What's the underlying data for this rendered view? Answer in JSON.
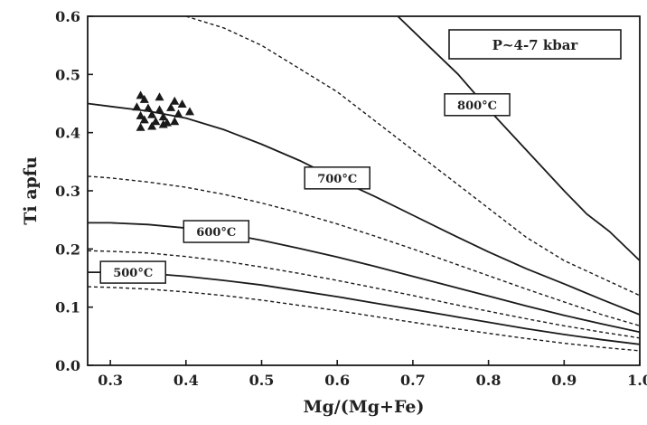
{
  "chart_data": {
    "type": "line",
    "title": "",
    "xlabel": "Mg/(Mg+Fe)",
    "ylabel": "Ti apfu",
    "xlim": [
      0.27,
      1.0
    ],
    "ylim": [
      0.0,
      0.6
    ],
    "xticks": [
      "0.3",
      "0.4",
      "0.5",
      "0.6",
      "0.7",
      "0.8",
      "0.9",
      "1.0"
    ],
    "yticks": [
      "0.0",
      "0.1",
      "0.2",
      "0.3",
      "0.4",
      "0.5",
      "0.6"
    ],
    "grid": false,
    "legend_box": "P~4-7 kbar",
    "series": [
      {
        "name": "800°C",
        "style": "solid",
        "x": [
          0.68,
          0.72,
          0.76,
          0.8,
          0.85,
          0.9,
          0.93,
          0.96,
          1.0
        ],
        "y": [
          0.6,
          0.55,
          0.5,
          0.44,
          0.37,
          0.3,
          0.26,
          0.23,
          0.18
        ]
      },
      {
        "name": "",
        "style": "dashed",
        "x": [
          0.4,
          0.45,
          0.5,
          0.55,
          0.6,
          0.65,
          0.7,
          0.75,
          0.8,
          0.85,
          0.9,
          0.95,
          1.0
        ],
        "y": [
          0.6,
          0.58,
          0.55,
          0.51,
          0.47,
          0.42,
          0.37,
          0.32,
          0.27,
          0.22,
          0.18,
          0.15,
          0.12
        ]
      },
      {
        "name": "700°C",
        "style": "solid",
        "x": [
          0.27,
          0.3,
          0.35,
          0.4,
          0.45,
          0.5,
          0.55,
          0.6,
          0.65,
          0.7,
          0.75,
          0.8,
          0.85,
          0.9,
          0.95,
          1.0
        ],
        "y": [
          0.45,
          0.445,
          0.437,
          0.425,
          0.405,
          0.38,
          0.352,
          0.32,
          0.29,
          0.258,
          0.226,
          0.195,
          0.166,
          0.14,
          0.113,
          0.087
        ]
      },
      {
        "name": "",
        "style": "dashed",
        "x": [
          0.27,
          0.3,
          0.35,
          0.4,
          0.45,
          0.5,
          0.55,
          0.6,
          0.65,
          0.7,
          0.75,
          0.8,
          0.85,
          0.9,
          0.95,
          1.0
        ],
        "y": [
          0.325,
          0.322,
          0.315,
          0.306,
          0.294,
          0.279,
          0.262,
          0.243,
          0.222,
          0.2,
          0.177,
          0.154,
          0.131,
          0.109,
          0.087,
          0.068
        ]
      },
      {
        "name": "600°C",
        "style": "solid",
        "x": [
          0.27,
          0.3,
          0.35,
          0.4,
          0.45,
          0.5,
          0.55,
          0.6,
          0.65,
          0.7,
          0.75,
          0.8,
          0.85,
          0.9,
          0.95,
          1.0
        ],
        "y": [
          0.245,
          0.245,
          0.242,
          0.236,
          0.227,
          0.215,
          0.201,
          0.186,
          0.17,
          0.153,
          0.136,
          0.119,
          0.102,
          0.086,
          0.071,
          0.057
        ]
      },
      {
        "name": "",
        "style": "dashed",
        "x": [
          0.27,
          0.3,
          0.35,
          0.4,
          0.45,
          0.5,
          0.55,
          0.6,
          0.65,
          0.7,
          0.75,
          0.8,
          0.85,
          0.9,
          0.95,
          1.0
        ],
        "y": [
          0.197,
          0.196,
          0.193,
          0.187,
          0.179,
          0.169,
          0.158,
          0.146,
          0.133,
          0.12,
          0.106,
          0.093,
          0.08,
          0.068,
          0.057,
          0.047
        ]
      },
      {
        "name": "500°C",
        "style": "solid",
        "x": [
          0.27,
          0.3,
          0.35,
          0.4,
          0.45,
          0.5,
          0.55,
          0.6,
          0.65,
          0.7,
          0.75,
          0.8,
          0.85,
          0.9,
          0.95,
          1.0
        ],
        "y": [
          0.16,
          0.16,
          0.158,
          0.153,
          0.146,
          0.138,
          0.128,
          0.118,
          0.107,
          0.096,
          0.085,
          0.074,
          0.063,
          0.053,
          0.044,
          0.036
        ]
      },
      {
        "name": "",
        "style": "dashed",
        "x": [
          0.27,
          0.3,
          0.35,
          0.4,
          0.45,
          0.5,
          0.55,
          0.6,
          0.65,
          0.7,
          0.75,
          0.8,
          0.85,
          0.9,
          0.95,
          1.0
        ],
        "y": [
          0.135,
          0.134,
          0.131,
          0.126,
          0.12,
          0.112,
          0.103,
          0.094,
          0.084,
          0.074,
          0.064,
          0.055,
          0.046,
          0.038,
          0.031,
          0.025
        ]
      }
    ],
    "curve_labels": [
      {
        "text": "800°C",
        "x": 0.785,
        "y": 0.448
      },
      {
        "text": "700°C",
        "x": 0.6,
        "y": 0.322
      },
      {
        "text": "600°C",
        "x": 0.44,
        "y": 0.23
      },
      {
        "text": "500°C",
        "x": 0.33,
        "y": 0.16
      }
    ],
    "points": {
      "marker": "triangle",
      "x": [
        0.34,
        0.345,
        0.365,
        0.385,
        0.335,
        0.35,
        0.365,
        0.38,
        0.395,
        0.405,
        0.34,
        0.355,
        0.37,
        0.39,
        0.345,
        0.36,
        0.375,
        0.34,
        0.355,
        0.37,
        0.385
      ],
      "y": [
        0.465,
        0.458,
        0.462,
        0.455,
        0.445,
        0.443,
        0.44,
        0.444,
        0.45,
        0.437,
        0.43,
        0.432,
        0.428,
        0.433,
        0.423,
        0.42,
        0.418,
        0.41,
        0.412,
        0.415,
        0.42
      ]
    }
  }
}
